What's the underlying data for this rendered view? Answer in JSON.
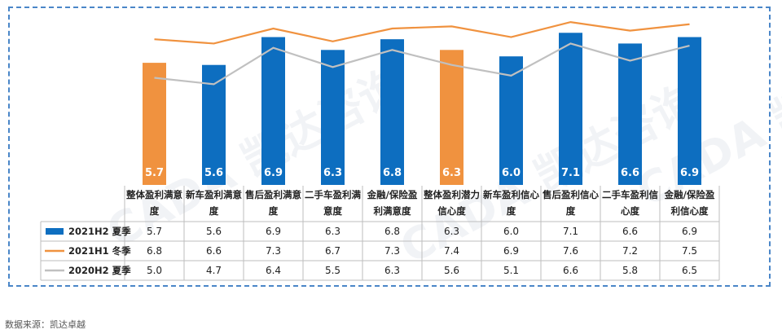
{
  "chart_data": {
    "type": "bar",
    "categories": [
      "整体盈利满意度",
      "新车盈利满意度",
      "售后盈利满意度",
      "二手车盈利满意度",
      "金融/保险盈利满意度",
      "整体盈利潜力信心度",
      "新车盈利信心度",
      "售后盈利信心度",
      "二手车盈利信心度",
      "金融/保险盈利信心度"
    ],
    "category_lines": [
      [
        "整体盈利满意",
        "度"
      ],
      [
        "新车盈利满意",
        "度"
      ],
      [
        "售后盈利满意",
        "度"
      ],
      [
        "二手车盈利满",
        "意度"
      ],
      [
        "金融/保险盈",
        "利满意度"
      ],
      [
        "整体盈利潜力",
        "信心度"
      ],
      [
        "新车盈利信心",
        "度"
      ],
      [
        "售后盈利信心",
        "度"
      ],
      [
        "二手车盈利信",
        "心度"
      ],
      [
        "金融/保险盈",
        "利信心度"
      ]
    ],
    "series": [
      {
        "name": "2021H2 夏季",
        "kind": "bar",
        "color": "#0d6ec0",
        "highlight_color": "#f0923f",
        "highlight_indices": [
          0,
          5
        ],
        "values": [
          5.7,
          5.6,
          6.9,
          6.3,
          6.8,
          6.3,
          6.0,
          7.1,
          6.6,
          6.9
        ],
        "labels": [
          "5.7",
          "5.6",
          "6.9",
          "6.3",
          "6.8",
          "6.3",
          "6.0",
          "7.1",
          "6.6",
          "6.9"
        ]
      },
      {
        "name": "2021H1 冬季",
        "kind": "line",
        "color": "#f0923f",
        "values": [
          6.8,
          6.6,
          7.3,
          6.7,
          7.3,
          7.4,
          6.9,
          7.6,
          7.2,
          7.5
        ],
        "labels": [
          "6.8",
          "6.6",
          "7.3",
          "6.7",
          "7.3",
          "7.4",
          "6.9",
          "7.6",
          "7.2",
          "7.5"
        ]
      },
      {
        "name": "2020H2 夏季",
        "kind": "line",
        "color": "#c0c0c0",
        "values": [
          5.0,
          4.7,
          6.4,
          5.5,
          6.3,
          5.6,
          5.1,
          6.6,
          5.8,
          6.5
        ],
        "labels": [
          "5.0",
          "4.7",
          "6.4",
          "5.5",
          "6.3",
          "5.6",
          "5.1",
          "6.6",
          "5.8",
          "6.5"
        ]
      }
    ],
    "ylim": [
      0,
      8
    ],
    "grid": false,
    "legend": "bottom-left data table",
    "data_table": true
  },
  "source": "数据来源：凯达卓越",
  "watermark": "CADA 凯达咨询"
}
